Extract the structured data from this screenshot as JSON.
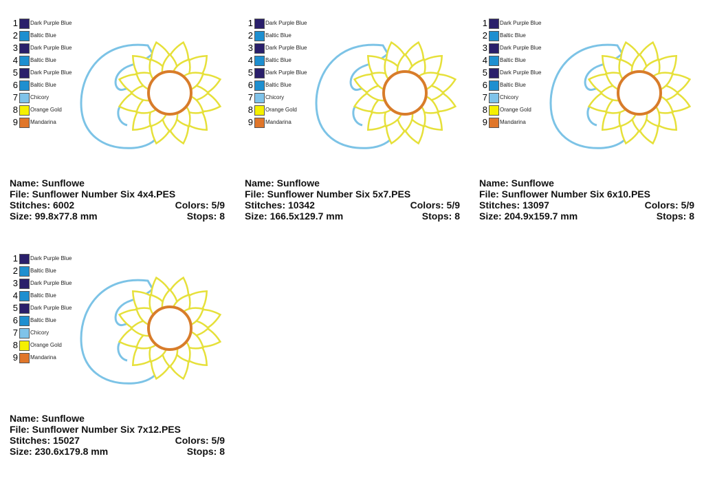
{
  "cards": [
    {
      "name_line": "Name: Sunflowe",
      "file_line": "File: Sunflower Number Six 4x4.PES",
      "stitches_line": "Stitches: 6002",
      "colors_line": "Colors: 5/9",
      "size_line": "Size: 99.8x77.8 mm",
      "stops_line": "Stops: 8",
      "palette": [
        {
          "number": "1",
          "name": "Dark Purple Blue",
          "color": "#2a1f6b"
        },
        {
          "number": "2",
          "name": "Baltic Blue",
          "color": "#1e8fd0"
        },
        {
          "number": "3",
          "name": "Dark Purple Blue",
          "color": "#2a1f6b"
        },
        {
          "number": "4",
          "name": "Baltic Blue",
          "color": "#1e8fd0"
        },
        {
          "number": "5",
          "name": "Dark Purple Blue",
          "color": "#2a1f6b"
        },
        {
          "number": "6",
          "name": "Baltic Blue",
          "color": "#1e8fd0"
        },
        {
          "number": "7",
          "name": "Chicory",
          "color": "#7fc3ea"
        },
        {
          "number": "8",
          "name": "Orange Gold",
          "color": "#f5f000"
        },
        {
          "number": "9",
          "name": "Mandarina",
          "color": "#e0762a"
        }
      ]
    },
    {
      "name_line": "Name: Sunflowe",
      "file_line": "File: Sunflower Number Six 5x7.PES",
      "stitches_line": "Stitches: 10342",
      "colors_line": "Colors: 5/9",
      "size_line": "Size: 166.5x129.7 mm",
      "stops_line": "Stops: 8",
      "palette": [
        {
          "number": "1",
          "name": "Dark Purple Blue",
          "color": "#2a1f6b"
        },
        {
          "number": "2",
          "name": "Baltic Blue",
          "color": "#1e8fd0"
        },
        {
          "number": "3",
          "name": "Dark Purple Blue",
          "color": "#2a1f6b"
        },
        {
          "number": "4",
          "name": "Baltic Blue",
          "color": "#1e8fd0"
        },
        {
          "number": "5",
          "name": "Dark Purple Blue",
          "color": "#2a1f6b"
        },
        {
          "number": "6",
          "name": "Baltic Blue",
          "color": "#1e8fd0"
        },
        {
          "number": "7",
          "name": "Chicory",
          "color": "#7fc3ea"
        },
        {
          "number": "8",
          "name": "Orange Gold",
          "color": "#f5f000"
        },
        {
          "number": "9",
          "name": "Mandarina",
          "color": "#e0762a"
        }
      ]
    },
    {
      "name_line": "Name: Sunflowe",
      "file_line": "File: Sunflower Number Six 6x10.PES",
      "stitches_line": "Stitches: 13097",
      "colors_line": "Colors: 5/9",
      "size_line": "Size: 204.9x159.7 mm",
      "stops_line": "Stops: 8",
      "palette": [
        {
          "number": "1",
          "name": "Dark Purple Blue",
          "color": "#2a1f6b"
        },
        {
          "number": "2",
          "name": "Baltic Blue",
          "color": "#1e8fd0"
        },
        {
          "number": "3",
          "name": "Dark Purple Blue",
          "color": "#2a1f6b"
        },
        {
          "number": "4",
          "name": "Baltic Blue",
          "color": "#1e8fd0"
        },
        {
          "number": "5",
          "name": "Dark Purple Blue",
          "color": "#2a1f6b"
        },
        {
          "number": "6",
          "name": "Baltic Blue",
          "color": "#1e8fd0"
        },
        {
          "number": "7",
          "name": "Chicory",
          "color": "#7fc3ea"
        },
        {
          "number": "8",
          "name": "Orange Gold",
          "color": "#f5f000"
        },
        {
          "number": "9",
          "name": "Mandarina",
          "color": "#e0762a"
        }
      ]
    },
    {
      "name_line": "Name: Sunflowe",
      "file_line": "File: Sunflower Number Six 7x12.PES",
      "stitches_line": "Stitches: 15027",
      "colors_line": "Colors: 5/9",
      "size_line": "Size: 230.6x179.8 mm",
      "stops_line": "Stops: 8",
      "palette": [
        {
          "number": "1",
          "name": "Dark Purple Blue",
          "color": "#2a1f6b"
        },
        {
          "number": "2",
          "name": "Baltic Blue",
          "color": "#1e8fd0"
        },
        {
          "number": "3",
          "name": "Dark Purple Blue",
          "color": "#2a1f6b"
        },
        {
          "number": "4",
          "name": "Baltic Blue",
          "color": "#1e8fd0"
        },
        {
          "number": "5",
          "name": "Dark Purple Blue",
          "color": "#2a1f6b"
        },
        {
          "number": "6",
          "name": "Baltic Blue",
          "color": "#1e8fd0"
        },
        {
          "number": "7",
          "name": "Chicory",
          "color": "#7fc3ea"
        },
        {
          "number": "8",
          "name": "Orange Gold",
          "color": "#f5f000"
        },
        {
          "number": "9",
          "name": "Mandarina",
          "color": "#e0762a"
        }
      ]
    }
  ]
}
